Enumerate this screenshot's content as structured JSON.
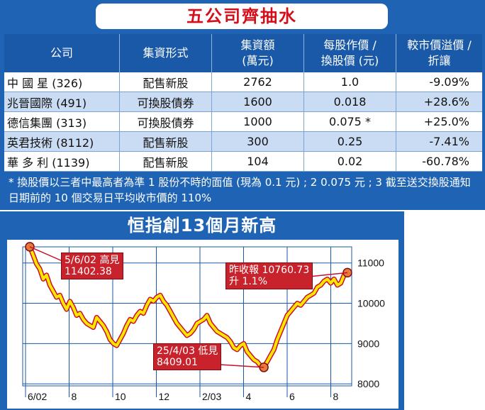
{
  "table": {
    "title": "五公司齊抽水",
    "headers": [
      "公司",
      "集資形式",
      "集資額\n(萬元)",
      "每股作價 /\n換股價 (元)",
      "較市價溢價 /\n折讓"
    ],
    "rows": [
      {
        "company": "中 國 星 (326)",
        "form": "配售新股",
        "amount": "2762",
        "price": "1.0",
        "premium": "-9.09%"
      },
      {
        "company": "兆晉國際 (491)",
        "form": "可換股債券",
        "amount": "1600",
        "price": "0.018",
        "premium": "+28.6%"
      },
      {
        "company": "德信集團 (313)",
        "form": "可換股債券",
        "amount": "1000",
        "price": "0.075 *",
        "premium": "+25.0%"
      },
      {
        "company": "英君技術 (8112)",
        "form": "配售新股",
        "amount": "300",
        "price": "0.25",
        "premium": "-7.41%"
      },
      {
        "company": "華 多 利 (1139)",
        "form": "配售新股",
        "amount": "104",
        "price": "0.02",
        "premium": "-60.78%"
      }
    ],
    "footnote": "* 換股價以三者中最高者為準 1 股份不時的面值 (現為 0.1 元) ; 2 0.075 元 ; 3 截至送交換股通知日期前的 10 個交易日平均收市價的 110%"
  },
  "chart_data": {
    "type": "line",
    "title": "恒指創13個月新高",
    "xlabel": "",
    "ylabel": "",
    "x_tick_labels": [
      "6/02",
      "8",
      "10",
      "12",
      "2/03",
      "4",
      "6",
      "8"
    ],
    "y_tick_labels": [
      "11000",
      "10000",
      "9000",
      "8000"
    ],
    "y_ticks": [
      11000,
      10000,
      9000,
      8000
    ],
    "ylim": [
      7950,
      11400
    ],
    "grid": true,
    "series": [
      {
        "values": [
          11402,
          11200,
          10980,
          10850,
          10600,
          10700,
          10450,
          10300,
          10150,
          10200,
          10000,
          9850,
          10050,
          9900,
          9700,
          9750,
          9600,
          9500,
          9450,
          9400,
          9650,
          9550,
          9450,
          9300,
          9100,
          9000,
          8950,
          9100,
          9250,
          9450,
          9600,
          9550,
          9700,
          9800,
          9750,
          9950,
          10100,
          10050,
          10150,
          10200,
          10050,
          9950,
          9800,
          9650,
          9500,
          9400,
          9300,
          9200,
          9250,
          9350,
          9500,
          9550,
          9600,
          9700,
          9500,
          9400,
          9300,
          9250,
          9200,
          9150,
          9050,
          8900,
          8850,
          8950,
          9000,
          8800,
          8700,
          8600,
          8550,
          8450,
          8409,
          8550,
          8700,
          8850,
          9100,
          9300,
          9500,
          9700,
          9800,
          9900,
          10000,
          9950,
          10050,
          10150,
          10200,
          10250,
          10400,
          10450,
          10550,
          10600,
          10500,
          10600,
          10450,
          10500,
          10700,
          10760
        ]
      }
    ],
    "annotations": [
      {
        "text": "5/6/02 高見\n11402.38"
      },
      {
        "text": "25/4/03 低見\n8409.01"
      },
      {
        "text": "昨收報 10760.73\n升 1.1%"
      }
    ],
    "colors": {
      "line_fill": "#ffe600",
      "line_edge": "#c8102e",
      "label_bg": "#c8232c",
      "plot_bg": "#ffffff",
      "grid": "#1a59a7"
    }
  }
}
